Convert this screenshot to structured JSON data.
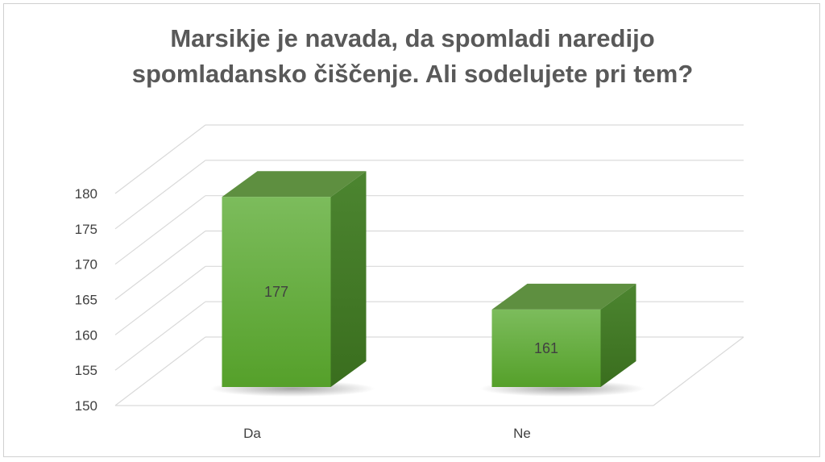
{
  "chart_data": {
    "type": "bar",
    "style": "3d-column",
    "title_lines": [
      "Marsikje je navada, da spomladi naredijo",
      "spomladansko čiščenje. Ali sodelujete pri tem?"
    ],
    "categories": [
      "Da",
      "Ne"
    ],
    "values": [
      177,
      161
    ],
    "data_labels": [
      "177",
      "161"
    ],
    "ylim": [
      150,
      180
    ],
    "y_ticks": [
      "150",
      "155",
      "160",
      "165",
      "170",
      "175",
      "180"
    ],
    "grid": true,
    "legend": "none",
    "colors": {
      "bar_front_top": "#78b85a",
      "bar_front_bottom": "#5aa02c",
      "bar_side": "#3f7a24",
      "bar_top": "#5e8f40",
      "grid": "#d9d9d9",
      "text": "#404040",
      "title": "#595959"
    }
  }
}
